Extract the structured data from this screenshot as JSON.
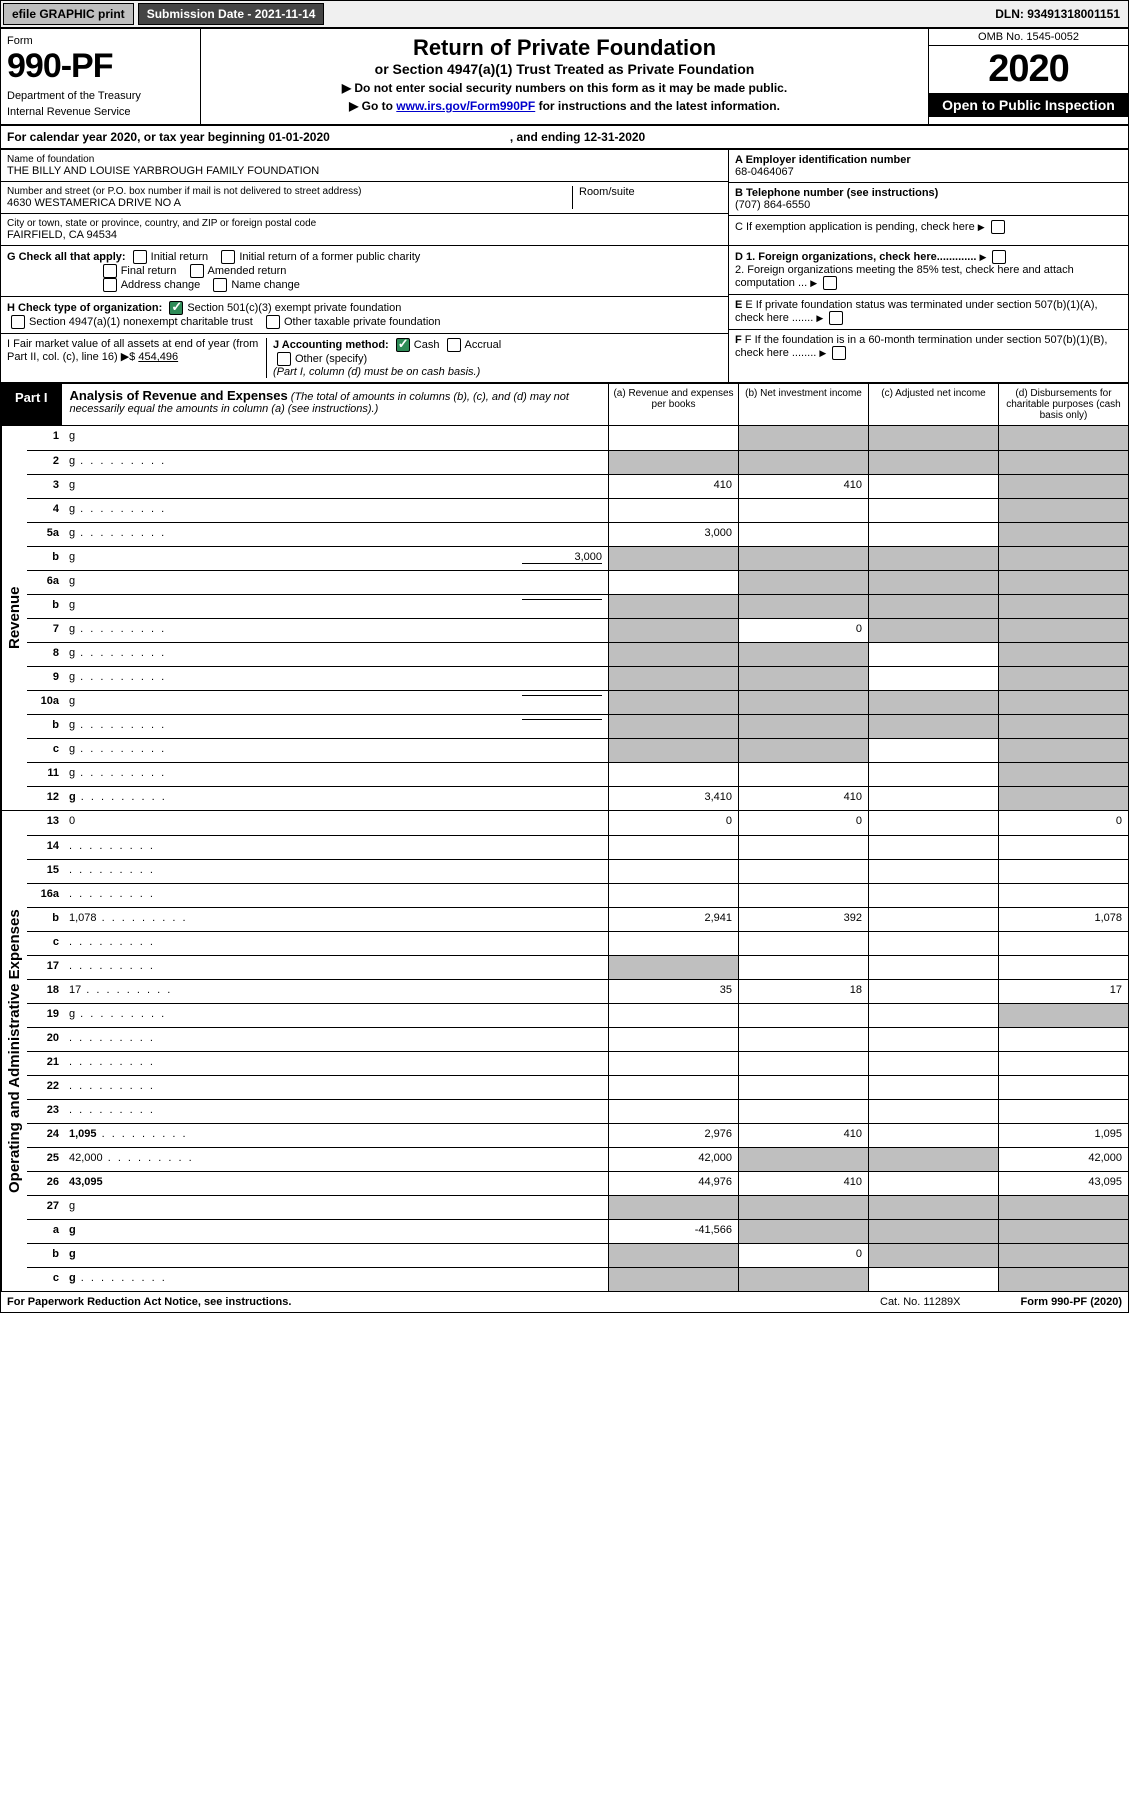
{
  "top": {
    "efile": "efile GRAPHIC print",
    "submission": "Submission Date - 2021-11-14",
    "dln": "DLN: 93491318001151"
  },
  "header": {
    "form": "Form",
    "formnum": "990-PF",
    "dept": "Department of the Treasury",
    "irs": "Internal Revenue Service",
    "title": "Return of Private Foundation",
    "sub1": "or Section 4947(a)(1) Trust Treated as Private Foundation",
    "sub2a": "▶ Do not enter social security numbers on this form as it may be made public.",
    "sub2b": "▶ Go to ",
    "link": "www.irs.gov/Form990PF",
    "sub2c": " for instructions and the latest information.",
    "omb": "OMB No. 1545-0052",
    "year": "2020",
    "open": "Open to Public Inspection"
  },
  "cal": {
    "text": "For calendar year 2020, or tax year beginning 01-01-2020",
    "ending": ", and ending 12-31-2020"
  },
  "info": {
    "name_label": "Name of foundation",
    "name": "THE BILLY AND LOUISE YARBROUGH FAMILY FOUNDATION",
    "ein_label": "A Employer identification number",
    "ein": "68-0464067",
    "addr_label": "Number and street (or P.O. box number if mail is not delivered to street address)",
    "addr": "4630 WESTAMERICA DRIVE NO A",
    "room": "Room/suite",
    "phone_label": "B Telephone number (see instructions)",
    "phone": "(707) 864-6550",
    "city_label": "City or town, state or province, country, and ZIP or foreign postal code",
    "city": "FAIRFIELD, CA  94534",
    "c_label": "C If exemption application is pending, check here",
    "g_label": "G Check all that apply:",
    "g_initial": "Initial return",
    "g_initial2": "Initial return of a former public charity",
    "g_final": "Final return",
    "g_amended": "Amended return",
    "g_addr": "Address change",
    "g_name": "Name change",
    "d1": "D 1. Foreign organizations, check here.............",
    "d2": "2. Foreign organizations meeting the 85% test, check here and attach computation ...",
    "h_label": "H Check type of organization:",
    "h_501c3": "Section 501(c)(3) exempt private foundation",
    "h_4947": "Section 4947(a)(1) nonexempt charitable trust",
    "h_other": "Other taxable private foundation",
    "e_label": "E If private foundation status was terminated under section 507(b)(1)(A), check here .......",
    "i_label": "I Fair market value of all assets at end of year (from Part II, col. (c), line 16) ▶$ ",
    "i_val": "454,496",
    "j_label": "J Accounting method:",
    "j_cash": "Cash",
    "j_accrual": "Accrual",
    "j_other": "Other (specify)",
    "j_note": "(Part I, column (d) must be on cash basis.)",
    "f_label": "F If the foundation is in a 60-month termination under section 507(b)(1)(B), check here ........"
  },
  "part1": {
    "tab": "Part I",
    "title": "Analysis of Revenue and Expenses",
    "note": "(The total of amounts in columns (b), (c), and (d) may not necessarily equal the amounts in column (a) (see instructions).)",
    "col_a": "(a) Revenue and expenses per books",
    "col_b": "(b) Net investment income",
    "col_c": "(c) Adjusted net income",
    "col_d": "(d) Disbursements for charitable purposes (cash basis only)"
  },
  "sides": {
    "revenue": "Revenue",
    "expenses": "Operating and Administrative Expenses"
  },
  "rows": [
    {
      "n": "1",
      "d": "g",
      "a": "",
      "b": "g",
      "c": "g"
    },
    {
      "n": "2",
      "d": "g",
      "a": "g",
      "b": "g",
      "c": "g",
      "dots": true
    },
    {
      "n": "3",
      "d": "g",
      "a": "410",
      "b": "410",
      "c": ""
    },
    {
      "n": "4",
      "d": "g",
      "a": "",
      "b": "",
      "c": "",
      "dots": true
    },
    {
      "n": "5a",
      "d": "g",
      "a": "3,000",
      "b": "",
      "c": "",
      "dots": true
    },
    {
      "n": "b",
      "d": "g",
      "a": "g",
      "b": "g",
      "c": "g",
      "inline": "3,000"
    },
    {
      "n": "6a",
      "d": "g",
      "a": "",
      "b": "g",
      "c": "g"
    },
    {
      "n": "b",
      "d": "g",
      "a": "g",
      "b": "g",
      "c": "g",
      "inline": ""
    },
    {
      "n": "7",
      "d": "g",
      "a": "g",
      "b": "0",
      "c": "g",
      "dots": true
    },
    {
      "n": "8",
      "d": "g",
      "a": "g",
      "b": "g",
      "c": "",
      "dots": true
    },
    {
      "n": "9",
      "d": "g",
      "a": "g",
      "b": "g",
      "c": "",
      "dots": true
    },
    {
      "n": "10a",
      "d": "g",
      "a": "g",
      "b": "g",
      "c": "g",
      "inline": ""
    },
    {
      "n": "b",
      "d": "g",
      "a": "g",
      "b": "g",
      "c": "g",
      "inline": "",
      "dots": true
    },
    {
      "n": "c",
      "d": "g",
      "a": "g",
      "b": "g",
      "c": "",
      "dots": true
    },
    {
      "n": "11",
      "d": "g",
      "a": "",
      "b": "",
      "c": "",
      "dots": true
    },
    {
      "n": "12",
      "d": "g",
      "a": "3,410",
      "b": "410",
      "c": "",
      "bold": true,
      "dots": true
    }
  ],
  "rows2": [
    {
      "n": "13",
      "d": "0",
      "a": "0",
      "b": "0",
      "c": ""
    },
    {
      "n": "14",
      "d": "",
      "a": "",
      "b": "",
      "c": "",
      "dots": true
    },
    {
      "n": "15",
      "d": "",
      "a": "",
      "b": "",
      "c": "",
      "dots": true
    },
    {
      "n": "16a",
      "d": "",
      "a": "",
      "b": "",
      "c": "",
      "dots": true
    },
    {
      "n": "b",
      "d": "1,078",
      "a": "2,941",
      "b": "392",
      "c": "",
      "dots": true
    },
    {
      "n": "c",
      "d": "",
      "a": "",
      "b": "",
      "c": "",
      "dots": true
    },
    {
      "n": "17",
      "d": "",
      "a": "g",
      "b": "",
      "c": "",
      "dots": true
    },
    {
      "n": "18",
      "d": "17",
      "a": "35",
      "b": "18",
      "c": "",
      "dots": true
    },
    {
      "n": "19",
      "d": "g",
      "a": "",
      "b": "",
      "c": "",
      "dots": true
    },
    {
      "n": "20",
      "d": "",
      "a": "",
      "b": "",
      "c": "",
      "dots": true
    },
    {
      "n": "21",
      "d": "",
      "a": "",
      "b": "",
      "c": "",
      "dots": true
    },
    {
      "n": "22",
      "d": "",
      "a": "",
      "b": "",
      "c": "",
      "dots": true
    },
    {
      "n": "23",
      "d": "",
      "a": "",
      "b": "",
      "c": "",
      "dots": true
    },
    {
      "n": "24",
      "d": "1,095",
      "a": "2,976",
      "b": "410",
      "c": "",
      "bold": true,
      "dots": true
    },
    {
      "n": "25",
      "d": "42,000",
      "a": "42,000",
      "b": "g",
      "c": "g",
      "dots": true
    },
    {
      "n": "26",
      "d": "43,095",
      "a": "44,976",
      "b": "410",
      "c": "",
      "bold": true
    },
    {
      "n": "27",
      "d": "g",
      "a": "g",
      "b": "g",
      "c": "g"
    },
    {
      "n": "a",
      "d": "g",
      "a": "-41,566",
      "b": "g",
      "c": "g",
      "bold": true
    },
    {
      "n": "b",
      "d": "g",
      "a": "g",
      "b": "0",
      "c": "g",
      "bold": true
    },
    {
      "n": "c",
      "d": "g",
      "a": "g",
      "b": "g",
      "c": "",
      "bold": true,
      "dots": true
    }
  ],
  "footer": {
    "left": "For Paperwork Reduction Act Notice, see instructions.",
    "cat": "Cat. No. 11289X",
    "form": "Form 990-PF (2020)"
  },
  "colors": {
    "grey": "#bfbfbf",
    "dark": "#444444",
    "green": "#2e8b57",
    "link": "#0000cc"
  }
}
